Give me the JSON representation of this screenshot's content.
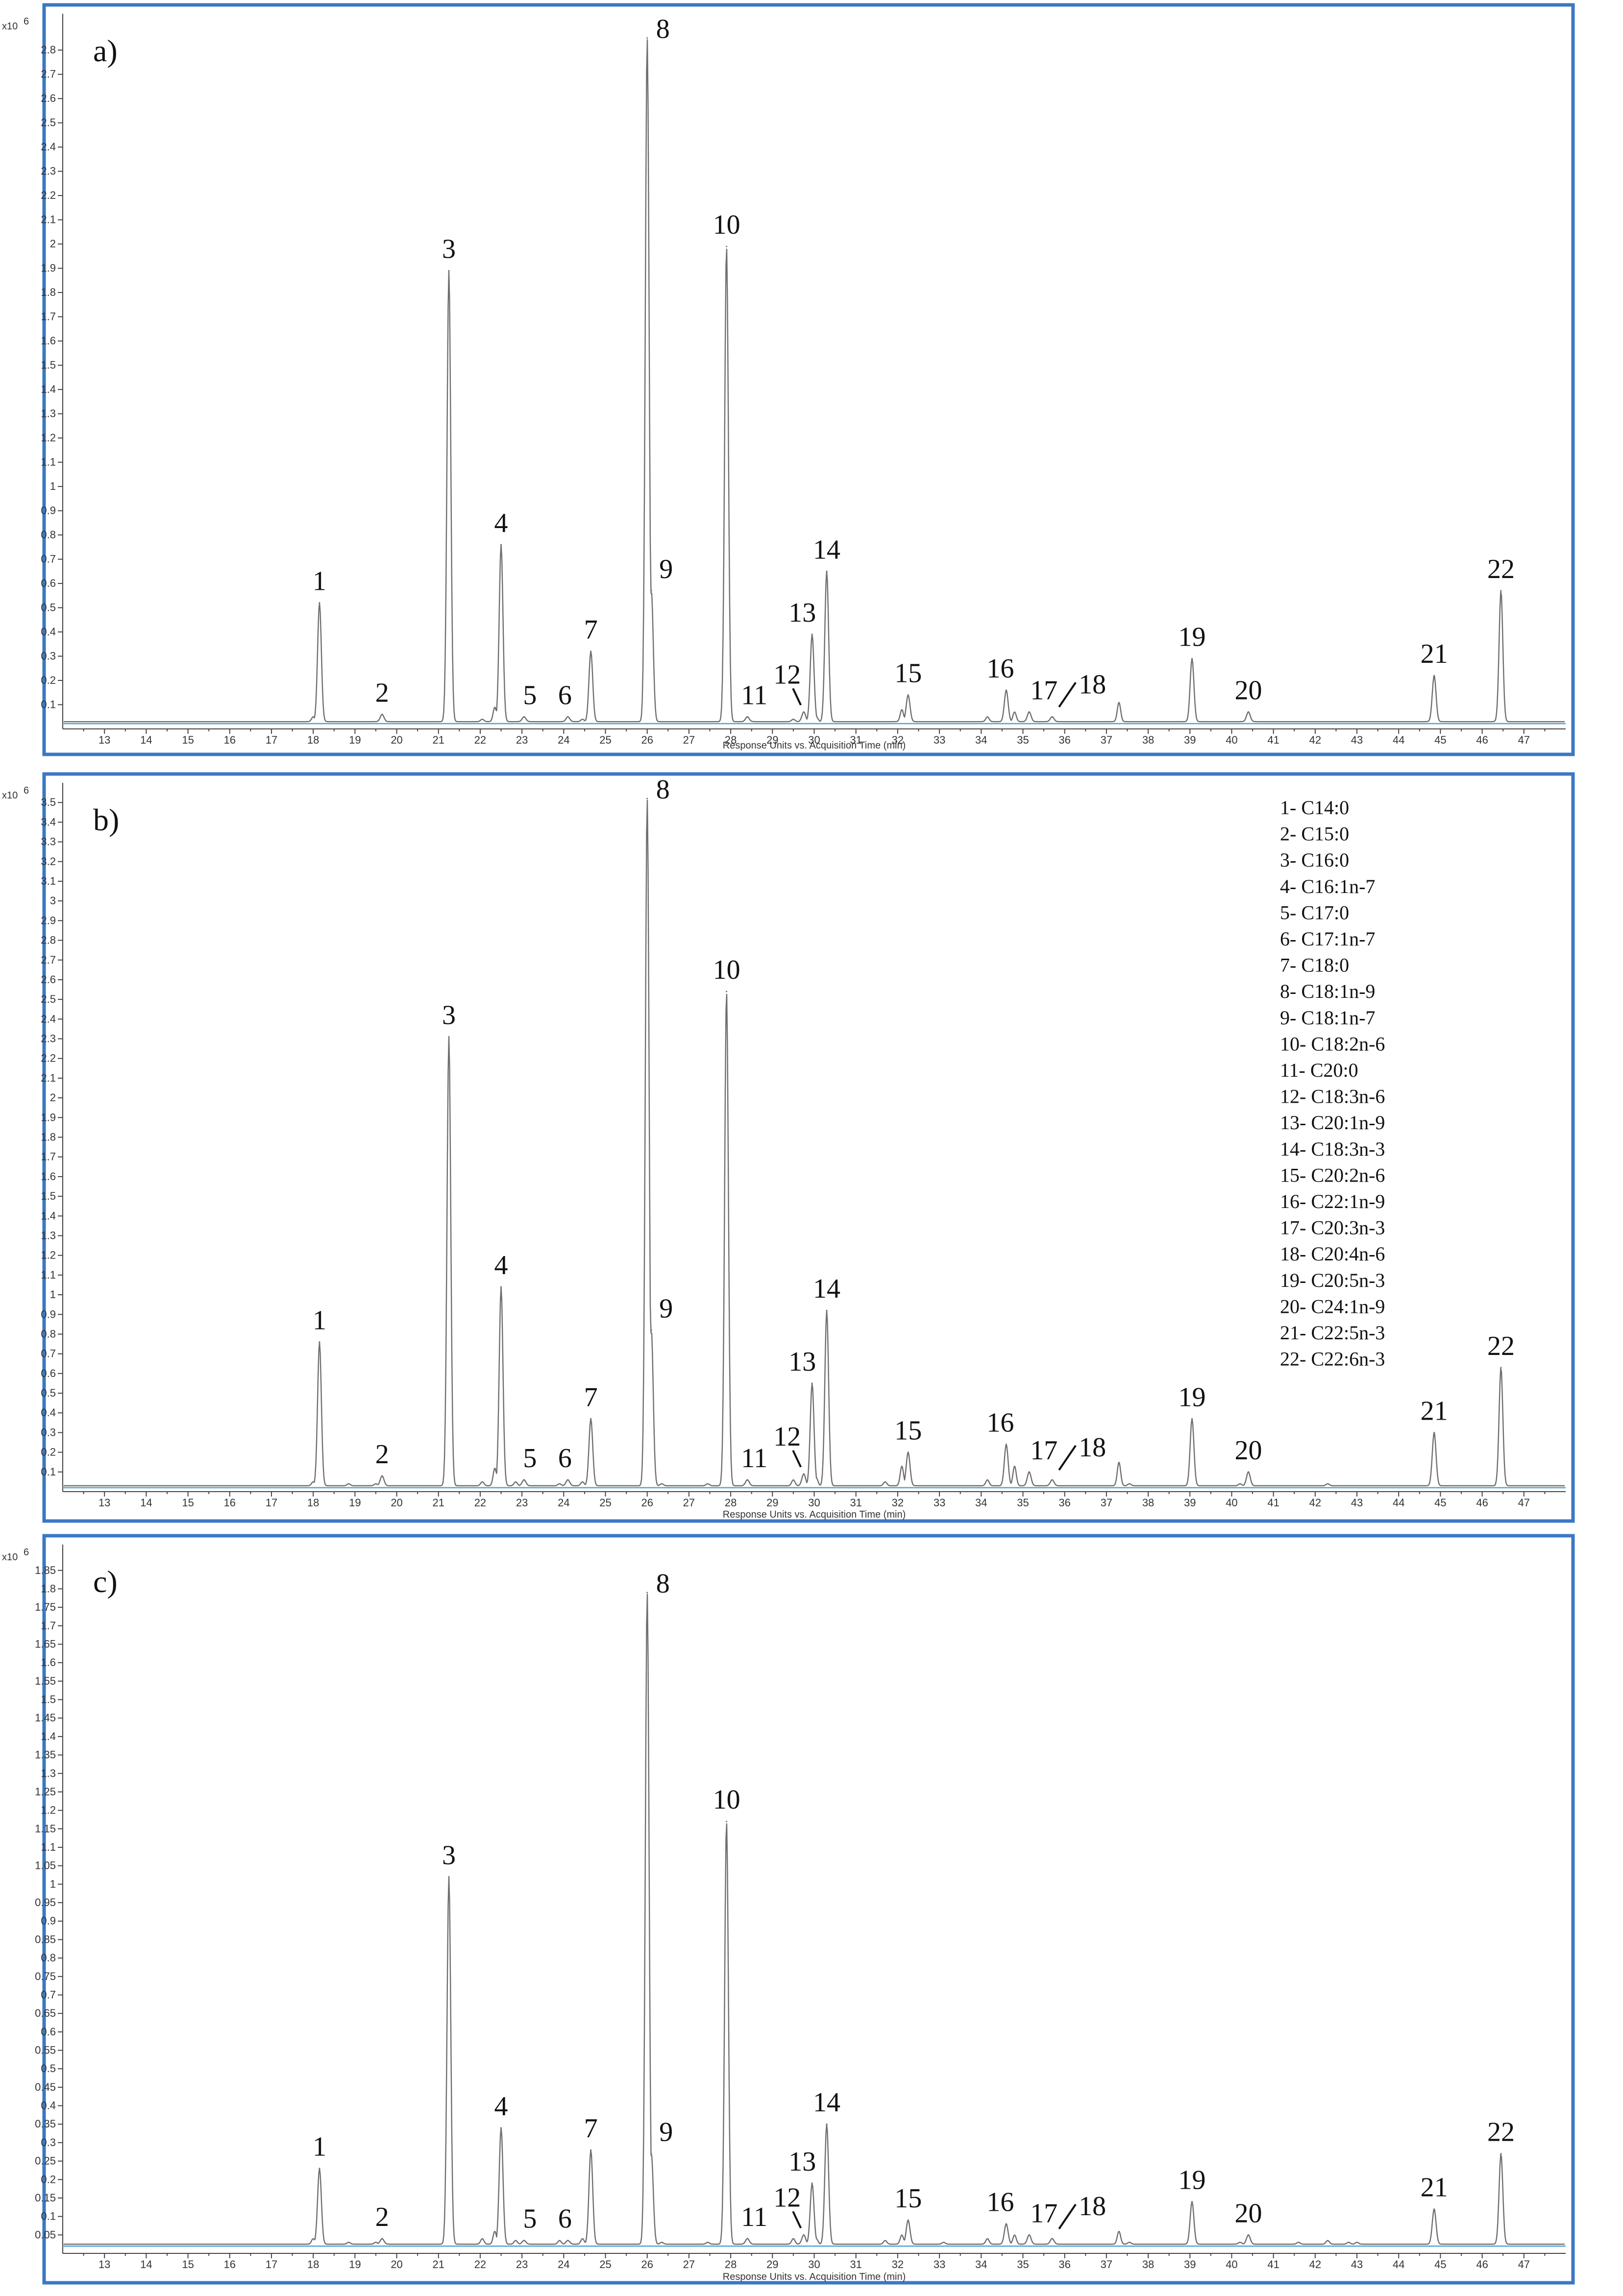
{
  "chart_data": [
    {
      "type": "line",
      "panel_label": "a)",
      "y_exponent": "x10",
      "y_exponent_power": "6",
      "xlabel": "Response Units vs. Acquisition Time (min)",
      "xlim": [
        12,
        48
      ],
      "ylim": [
        0,
        2.95
      ],
      "x_ticks": [
        "13",
        "14",
        "15",
        "16",
        "17",
        "18",
        "19",
        "20",
        "21",
        "22",
        "23",
        "24",
        "25",
        "26",
        "27",
        "28",
        "29",
        "30",
        "31",
        "32",
        "33",
        "34",
        "35",
        "36",
        "37",
        "38",
        "39",
        "40",
        "41",
        "42",
        "43",
        "44",
        "45",
        "46",
        "47"
      ],
      "y_ticks": [
        "0.1",
        "0.2",
        "0.3",
        "0.4",
        "0.5",
        "0.6",
        "0.7",
        "0.8",
        "0.9",
        "1",
        "1.1",
        "1.2",
        "1.3",
        "1.4",
        "1.5",
        "1.6",
        "1.7",
        "1.8",
        "1.9",
        "2",
        "2.1",
        "2.2",
        "2.3",
        "2.4",
        "2.5",
        "2.6",
        "2.7",
        "2.8"
      ],
      "baseline": 0.03,
      "peaks": [
        {
          "label": "1",
          "x": 18.15,
          "y": 0.52
        },
        {
          "label": "2",
          "x": 19.65,
          "y": 0.06
        },
        {
          "label": "3",
          "x": 21.25,
          "y": 1.89
        },
        {
          "label": "4",
          "x": 22.5,
          "y": 0.76
        },
        {
          "label": "5",
          "x": 23.05,
          "y": 0.05
        },
        {
          "label": "6",
          "x": 24.1,
          "y": 0.05
        },
        {
          "label": "7",
          "x": 24.65,
          "y": 0.32
        },
        {
          "label": "8",
          "x": 26.0,
          "y": 2.85
        },
        {
          "label": "9",
          "x": 26.1,
          "y": 0.57
        },
        {
          "label": "10",
          "x": 27.9,
          "y": 1.99
        },
        {
          "label": "11",
          "x": 28.4,
          "y": 0.05
        },
        {
          "label": "12",
          "x": 29.75,
          "y": 0.07
        },
        {
          "label": "13",
          "x": 29.95,
          "y": 0.39
        },
        {
          "label": "14",
          "x": 30.3,
          "y": 0.65
        },
        {
          "label": "15",
          "x": 32.25,
          "y": 0.14
        },
        {
          "label": "16",
          "x": 34.6,
          "y": 0.16
        },
        {
          "label": "17",
          "x": 35.15,
          "y": 0.07
        },
        {
          "label": "18",
          "x": 35.7,
          "y": 0.05
        },
        {
          "label": "19",
          "x": 39.05,
          "y": 0.29
        },
        {
          "label": "20",
          "x": 40.4,
          "y": 0.07
        },
        {
          "label": "21",
          "x": 44.85,
          "y": 0.22
        },
        {
          "label": "22",
          "x": 46.45,
          "y": 0.57
        }
      ],
      "minor_peaks": [
        {
          "x": 18.0,
          "y": 0.05
        },
        {
          "x": 18.85,
          "y": 0.02
        },
        {
          "x": 19.5,
          "y": 0.03
        },
        {
          "x": 22.05,
          "y": 0.04
        },
        {
          "x": 22.35,
          "y": 0.09
        },
        {
          "x": 22.85,
          "y": 0.03
        },
        {
          "x": 23.9,
          "y": 0.03
        },
        {
          "x": 24.45,
          "y": 0.04
        },
        {
          "x": 26.35,
          "y": 0.03
        },
        {
          "x": 27.45,
          "y": 0.03
        },
        {
          "x": 29.5,
          "y": 0.04
        },
        {
          "x": 30.05,
          "y": 0.05
        },
        {
          "x": 31.7,
          "y": 0.03
        },
        {
          "x": 32.1,
          "y": 0.08
        },
        {
          "x": 33.1,
          "y": 0.02
        },
        {
          "x": 34.15,
          "y": 0.05
        },
        {
          "x": 34.8,
          "y": 0.07
        },
        {
          "x": 37.3,
          "y": 0.11
        },
        {
          "x": 37.55,
          "y": 0.03
        },
        {
          "x": 40.2,
          "y": 0.02
        },
        {
          "x": 41.6,
          "y": 0.02
        },
        {
          "x": 42.3,
          "y": 0.03
        },
        {
          "x": 42.8,
          "y": 0.02
        },
        {
          "x": 43.0,
          "y": 0.02
        }
      ]
    },
    {
      "type": "line",
      "panel_label": "b)",
      "y_exponent": "x10",
      "y_exponent_power": "6",
      "xlabel": "Response Units vs. Acquisition Time (min)",
      "xlim": [
        12,
        48
      ],
      "ylim": [
        0,
        3.6
      ],
      "x_ticks": [
        "13",
        "14",
        "15",
        "16",
        "17",
        "18",
        "19",
        "20",
        "21",
        "22",
        "23",
        "24",
        "25",
        "26",
        "27",
        "28",
        "29",
        "30",
        "31",
        "32",
        "33",
        "34",
        "35",
        "36",
        "37",
        "38",
        "39",
        "40",
        "41",
        "42",
        "43",
        "44",
        "45",
        "46",
        "47"
      ],
      "y_ticks": [
        "0.1",
        "0.2",
        "0.3",
        "0.4",
        "0.5",
        "0.6",
        "0.7",
        "0.8",
        "0.9",
        "1",
        "1.1",
        "1.2",
        "1.3",
        "1.4",
        "1.5",
        "1.6",
        "1.7",
        "1.8",
        "1.9",
        "2",
        "2.1",
        "2.2",
        "2.3",
        "2.4",
        "2.5",
        "2.6",
        "2.7",
        "2.8",
        "2.9",
        "3",
        "3.1",
        "3.2",
        "3.3",
        "3.4",
        "3.5"
      ],
      "baseline": 0.03,
      "peaks": [
        {
          "label": "1",
          "x": 18.15,
          "y": 0.76
        },
        {
          "label": "2",
          "x": 19.65,
          "y": 0.08
        },
        {
          "label": "3",
          "x": 21.25,
          "y": 2.31
        },
        {
          "label": "4",
          "x": 22.5,
          "y": 1.04
        },
        {
          "label": "5",
          "x": 23.05,
          "y": 0.06
        },
        {
          "label": "6",
          "x": 24.1,
          "y": 0.06
        },
        {
          "label": "7",
          "x": 24.65,
          "y": 0.37
        },
        {
          "label": "8",
          "x": 26.0,
          "y": 3.52
        },
        {
          "label": "9",
          "x": 26.1,
          "y": 0.82
        },
        {
          "label": "10",
          "x": 27.9,
          "y": 2.54
        },
        {
          "label": "11",
          "x": 28.4,
          "y": 0.06
        },
        {
          "label": "12",
          "x": 29.75,
          "y": 0.09
        },
        {
          "label": "13",
          "x": 29.95,
          "y": 0.55
        },
        {
          "label": "14",
          "x": 30.3,
          "y": 0.92
        },
        {
          "label": "15",
          "x": 32.25,
          "y": 0.2
        },
        {
          "label": "16",
          "x": 34.6,
          "y": 0.24
        },
        {
          "label": "17",
          "x": 35.15,
          "y": 0.1
        },
        {
          "label": "18",
          "x": 35.7,
          "y": 0.06
        },
        {
          "label": "19",
          "x": 39.05,
          "y": 0.37
        },
        {
          "label": "20",
          "x": 40.4,
          "y": 0.1
        },
        {
          "label": "21",
          "x": 44.85,
          "y": 0.3
        },
        {
          "label": "22",
          "x": 46.45,
          "y": 0.63
        }
      ],
      "minor_peaks": [
        {
          "x": 18.0,
          "y": 0.05
        },
        {
          "x": 18.85,
          "y": 0.04
        },
        {
          "x": 19.5,
          "y": 0.04
        },
        {
          "x": 22.05,
          "y": 0.05
        },
        {
          "x": 22.35,
          "y": 0.12
        },
        {
          "x": 22.85,
          "y": 0.05
        },
        {
          "x": 23.9,
          "y": 0.04
        },
        {
          "x": 24.45,
          "y": 0.05
        },
        {
          "x": 26.35,
          "y": 0.04
        },
        {
          "x": 27.45,
          "y": 0.04
        },
        {
          "x": 29.5,
          "y": 0.06
        },
        {
          "x": 30.05,
          "y": 0.07
        },
        {
          "x": 31.7,
          "y": 0.05
        },
        {
          "x": 32.1,
          "y": 0.13
        },
        {
          "x": 33.1,
          "y": 0.03
        },
        {
          "x": 34.15,
          "y": 0.06
        },
        {
          "x": 34.8,
          "y": 0.13
        },
        {
          "x": 37.3,
          "y": 0.15
        },
        {
          "x": 37.55,
          "y": 0.04
        },
        {
          "x": 40.2,
          "y": 0.04
        },
        {
          "x": 41.6,
          "y": 0.02
        },
        {
          "x": 42.3,
          "y": 0.04
        },
        {
          "x": 42.8,
          "y": 0.03
        },
        {
          "x": 43.0,
          "y": 0.03
        }
      ],
      "legend": {
        "position": "top-right",
        "entries": [
          "1- C14:0",
          "2- C15:0",
          "3- C16:0",
          "4- C16:1n-7",
          "5- C17:0",
          "6- C17:1n-7",
          "7- C18:0",
          "8- C18:1n-9",
          "9- C18:1n-7",
          "10- C18:2n-6",
          "11- C20:0",
          "12- C18:3n-6",
          "13- C20:1n-9",
          "14- C18:3n-3",
          "15- C20:2n-6",
          "16- C22:1n-9",
          "17- C20:3n-3",
          "18- C20:4n-6",
          "19- C20:5n-3",
          "20- C24:1n-9",
          "21- C22:5n-3",
          "22- C22:6n-3"
        ]
      }
    },
    {
      "type": "line",
      "panel_label": "c)",
      "y_exponent": "x10",
      "y_exponent_power": "6",
      "xlabel": "Response Units vs. Acquisition Time (min)",
      "xlim": [
        12,
        48
      ],
      "ylim": [
        0,
        1.92
      ],
      "x_ticks": [
        "13",
        "14",
        "15",
        "16",
        "17",
        "18",
        "19",
        "20",
        "21",
        "22",
        "23",
        "24",
        "25",
        "26",
        "27",
        "28",
        "29",
        "30",
        "31",
        "32",
        "33",
        "34",
        "35",
        "36",
        "37",
        "38",
        "39",
        "40",
        "41",
        "42",
        "43",
        "44",
        "45",
        "46",
        "47"
      ],
      "y_ticks": [
        "0.05",
        "0.1",
        "0.15",
        "0.2",
        "0.25",
        "0.3",
        "0.35",
        "0.4",
        "0.45",
        "0.5",
        "0.55",
        "0.6",
        "0.65",
        "0.7",
        "0.75",
        "0.8",
        "0.85",
        "0.9",
        "0.95",
        "1",
        "1.05",
        "1.1",
        "1.15",
        "1.2",
        "1.25",
        "1.3",
        "1.35",
        "1.4",
        "1.45",
        "1.5",
        "1.55",
        "1.6",
        "1.65",
        "1.7",
        "1.75",
        "1.8",
        "1.85"
      ],
      "baseline": 0.025,
      "peaks": [
        {
          "label": "1",
          "x": 18.15,
          "y": 0.23
        },
        {
          "label": "2",
          "x": 19.65,
          "y": 0.04
        },
        {
          "label": "3",
          "x": 21.25,
          "y": 1.02
        },
        {
          "label": "4",
          "x": 22.5,
          "y": 0.34
        },
        {
          "label": "5",
          "x": 23.05,
          "y": 0.035
        },
        {
          "label": "6",
          "x": 24.1,
          "y": 0.035
        },
        {
          "label": "7",
          "x": 24.65,
          "y": 0.28
        },
        {
          "label": "8",
          "x": 26.0,
          "y": 1.79
        },
        {
          "label": "9",
          "x": 26.1,
          "y": 0.27
        },
        {
          "label": "10",
          "x": 27.9,
          "y": 1.17
        },
        {
          "label": "11",
          "x": 28.4,
          "y": 0.04
        },
        {
          "label": "12",
          "x": 29.75,
          "y": 0.05
        },
        {
          "label": "13",
          "x": 29.95,
          "y": 0.19
        },
        {
          "label": "14",
          "x": 30.3,
          "y": 0.35
        },
        {
          "label": "15",
          "x": 32.25,
          "y": 0.09
        },
        {
          "label": "16",
          "x": 34.6,
          "y": 0.08
        },
        {
          "label": "17",
          "x": 35.15,
          "y": 0.05
        },
        {
          "label": "18",
          "x": 35.7,
          "y": 0.04
        },
        {
          "label": "19",
          "x": 39.05,
          "y": 0.14
        },
        {
          "label": "20",
          "x": 40.4,
          "y": 0.05
        },
        {
          "label": "21",
          "x": 44.85,
          "y": 0.12
        },
        {
          "label": "22",
          "x": 46.45,
          "y": 0.27
        }
      ],
      "minor_peaks": [
        {
          "x": 18.0,
          "y": 0.04
        },
        {
          "x": 18.85,
          "y": 0.03
        },
        {
          "x": 19.5,
          "y": 0.03
        },
        {
          "x": 22.05,
          "y": 0.04
        },
        {
          "x": 22.35,
          "y": 0.06
        },
        {
          "x": 22.85,
          "y": 0.035
        },
        {
          "x": 23.9,
          "y": 0.035
        },
        {
          "x": 24.45,
          "y": 0.04
        },
        {
          "x": 26.35,
          "y": 0.03
        },
        {
          "x": 27.45,
          "y": 0.03
        },
        {
          "x": 29.5,
          "y": 0.04
        },
        {
          "x": 30.05,
          "y": 0.04
        },
        {
          "x": 31.7,
          "y": 0.035
        },
        {
          "x": 32.1,
          "y": 0.05
        },
        {
          "x": 33.1,
          "y": 0.03
        },
        {
          "x": 34.15,
          "y": 0.04
        },
        {
          "x": 34.8,
          "y": 0.05
        },
        {
          "x": 37.3,
          "y": 0.06
        },
        {
          "x": 37.55,
          "y": 0.03
        },
        {
          "x": 40.2,
          "y": 0.03
        },
        {
          "x": 41.6,
          "y": 0.03
        },
        {
          "x": 42.3,
          "y": 0.035
        },
        {
          "x": 42.8,
          "y": 0.03
        },
        {
          "x": 43.0,
          "y": 0.03
        }
      ]
    }
  ]
}
